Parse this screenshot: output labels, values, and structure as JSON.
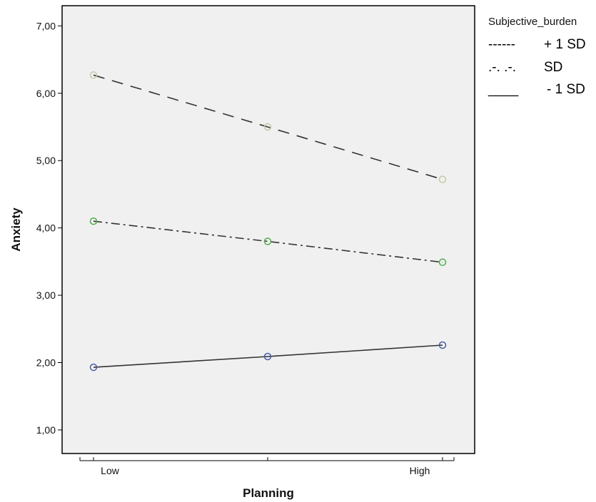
{
  "chart_data": {
    "type": "line",
    "x_categories": [
      "Low",
      "",
      "High"
    ],
    "xlabel": "Planning",
    "ylabel": "Anxiety",
    "ylim": [
      0.65,
      7.3
    ],
    "y_ticks": [
      1,
      2,
      3,
      4,
      5,
      6,
      7
    ],
    "y_tick_labels": [
      "1,00",
      "2,00",
      "3,00",
      "4,00",
      "5,00",
      "6,00",
      "7,00"
    ],
    "grid": false,
    "plot_background": "#f0f0f0",
    "legend_position": "top-right, outside plot",
    "legend_title": "Subjective_burden",
    "legend": [
      {
        "swatch": "------",
        "label": "+ 1 SD"
      },
      {
        "swatch": ".-. .-.",
        "label": "SD"
      },
      {
        "swatch": "____",
        "label": "- 1 SD"
      }
    ],
    "series": [
      {
        "values": [
          6.27,
          5.5,
          4.72
        ],
        "dash": "dashed",
        "marker_color": "#c8c8a8"
      },
      {
        "values": [
          4.1,
          3.8,
          3.49
        ],
        "dash": "dash-dot",
        "marker_color": "#4cae4c"
      },
      {
        "values": [
          1.93,
          2.09,
          2.26
        ],
        "dash": "solid",
        "marker_color": "#4a5ea8"
      }
    ]
  }
}
